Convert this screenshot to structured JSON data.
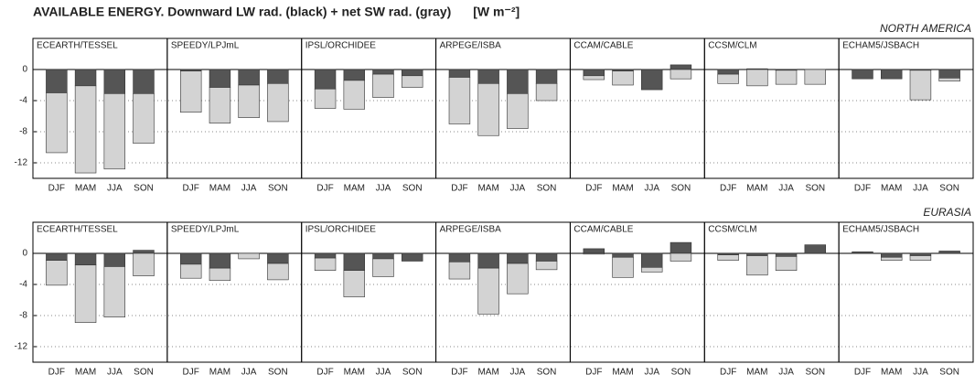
{
  "title": "AVAILABLE ENERGY. Downward LW rad. (black) + net SW rad. (gray)",
  "units": "[W m⁻²]",
  "chart_data": [
    {
      "type": "bar",
      "title": "NORTH AMERICA",
      "categories": [
        "DJF",
        "MAM",
        "JJA",
        "SON"
      ],
      "ylim": [
        -14,
        4
      ],
      "yticks": [
        0,
        -4,
        -8,
        -12
      ],
      "grid": true,
      "panels": [
        {
          "title": "ECEARTH/TESSEL",
          "series": [
            {
              "color": "#555555",
              "values": [
                -3.0,
                -2.1,
                -3.1,
                -3.1
              ]
            },
            {
              "color": "#d3d3d3",
              "values": [
                -7.7,
                -11.2,
                -9.7,
                -6.4
              ]
            }
          ]
        },
        {
          "title": "SPEEDY/LPJmL",
          "series": [
            {
              "color": "#555555",
              "values": [
                -0.2,
                -2.3,
                -2.0,
                -1.8
              ]
            },
            {
              "color": "#d3d3d3",
              "values": [
                -5.3,
                -4.6,
                -4.2,
                -4.9
              ]
            }
          ]
        },
        {
          "title": "IPSL/ORCHIDEE",
          "series": [
            {
              "color": "#555555",
              "values": [
                -2.5,
                -1.4,
                -0.6,
                -0.8
              ]
            },
            {
              "color": "#d3d3d3",
              "values": [
                -2.5,
                -3.7,
                -3.0,
                -1.5
              ]
            }
          ]
        },
        {
          "title": "ARPEGE/ISBA",
          "series": [
            {
              "color": "#555555",
              "values": [
                -1.0,
                -1.8,
                -3.1,
                -1.8
              ]
            },
            {
              "color": "#d3d3d3",
              "values": [
                -6.0,
                -6.7,
                -4.5,
                -2.2
              ]
            }
          ]
        },
        {
          "title": "CCAM/CABLE",
          "series": [
            {
              "color": "#555555",
              "values": [
                -0.8,
                -0.2,
                -2.6,
                0.6
              ]
            },
            {
              "color": "#d3d3d3",
              "values": [
                -0.5,
                -1.8,
                0,
                -1.2
              ]
            }
          ]
        },
        {
          "title": "CCSM/CLM",
          "series": [
            {
              "color": "#555555",
              "values": [
                -0.6,
                0.1,
                -0.1,
                0
              ]
            },
            {
              "color": "#d3d3d3",
              "values": [
                -1.2,
                -2.1,
                -1.8,
                -1.9
              ]
            }
          ]
        },
        {
          "title": "ECHAM5/JSBACH",
          "series": [
            {
              "color": "#555555",
              "values": [
                -1.2,
                -1.2,
                -0.1,
                -1.1
              ]
            },
            {
              "color": "#d3d3d3",
              "values": [
                0,
                0,
                -3.8,
                -0.4
              ]
            }
          ]
        }
      ]
    },
    {
      "type": "bar",
      "title": "EURASIA",
      "categories": [
        "DJF",
        "MAM",
        "JJA",
        "SON"
      ],
      "ylim": [
        -14,
        4
      ],
      "yticks": [
        0,
        -4,
        -8,
        -12
      ],
      "grid": true,
      "panels": [
        {
          "title": "ECEARTH/TESSEL",
          "series": [
            {
              "color": "#555555",
              "values": [
                -0.9,
                -1.5,
                -1.7,
                0.4
              ]
            },
            {
              "color": "#d3d3d3",
              "values": [
                -3.2,
                -7.4,
                -6.5,
                -2.9
              ]
            }
          ]
        },
        {
          "title": "SPEEDY/LPJmL",
          "series": [
            {
              "color": "#555555",
              "values": [
                -1.4,
                -1.9,
                0,
                -1.3
              ]
            },
            {
              "color": "#d3d3d3",
              "values": [
                -1.8,
                -1.6,
                -0.7,
                -2.1
              ]
            }
          ]
        },
        {
          "title": "IPSL/ORCHIDEE",
          "series": [
            {
              "color": "#555555",
              "values": [
                -0.6,
                -2.2,
                -0.7,
                -1.0
              ]
            },
            {
              "color": "#d3d3d3",
              "values": [
                -1.6,
                -3.4,
                -2.3,
                0
              ]
            }
          ]
        },
        {
          "title": "ARPEGE/ISBA",
          "series": [
            {
              "color": "#555555",
              "values": [
                -1.1,
                -1.9,
                -1.3,
                -1.0
              ]
            },
            {
              "color": "#d3d3d3",
              "values": [
                -2.2,
                -5.9,
                -3.9,
                -1.1
              ]
            }
          ]
        },
        {
          "title": "CCAM/CABLE",
          "series": [
            {
              "color": "#555555",
              "values": [
                0.6,
                -0.5,
                -1.8,
                1.4
              ]
            },
            {
              "color": "#d3d3d3",
              "values": [
                -0.1,
                -2.6,
                -0.6,
                -1.0
              ]
            }
          ]
        },
        {
          "title": "CCSM/CLM",
          "series": [
            {
              "color": "#555555",
              "values": [
                -0.2,
                -0.3,
                -0.4,
                1.1
              ]
            },
            {
              "color": "#d3d3d3",
              "values": [
                -0.7,
                -2.5,
                -1.8,
                0
              ]
            }
          ]
        },
        {
          "title": "ECHAM5/JSBACH",
          "series": [
            {
              "color": "#555555",
              "values": [
                0.2,
                -0.5,
                -0.3,
                0.3
              ]
            },
            {
              "color": "#d3d3d3",
              "values": [
                0,
                -0.4,
                -0.6,
                0
              ]
            }
          ]
        }
      ]
    }
  ]
}
